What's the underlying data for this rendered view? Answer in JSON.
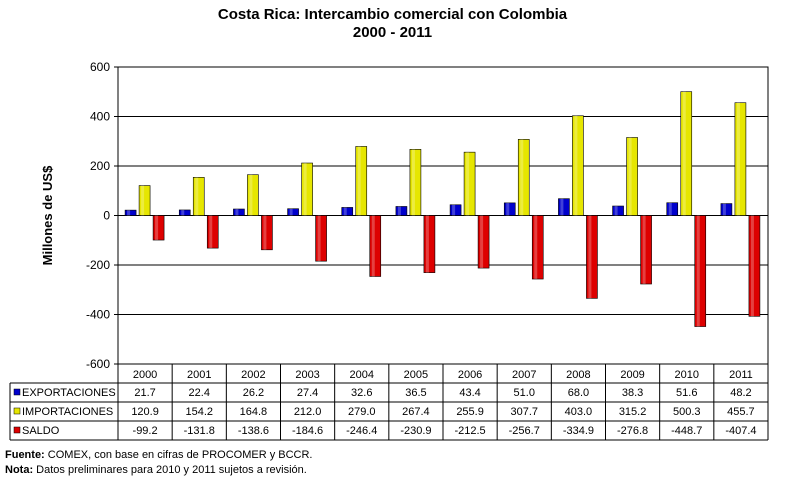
{
  "chart_data": {
    "type": "bar",
    "title": "Costa Rica: Intercambio comercial con Colombia",
    "subtitle": "2000 - 2011",
    "ylabel": "Millones de US$",
    "xlabel": "",
    "ylim": [
      -600,
      600
    ],
    "yticks": [
      600,
      400,
      200,
      0,
      -200,
      -400,
      -600
    ],
    "grid": true,
    "legend": "data-table-left",
    "categories": [
      "2000",
      "2001",
      "2002",
      "2003",
      "2004",
      "2005",
      "2006",
      "2007",
      "2008",
      "2009",
      "2010",
      "2011"
    ],
    "series": [
      {
        "name": "EXPORTACIONES",
        "color": "#0000cc",
        "values": [
          21.7,
          22.4,
          26.2,
          27.4,
          32.6,
          36.5,
          43.4,
          51.0,
          68.0,
          38.3,
          51.6,
          48.2
        ],
        "labels": [
          "21.7",
          "22.4",
          "26.2",
          "27.4",
          "32.6",
          "36.5",
          "43.4",
          "51.0",
          "68.0",
          "38.3",
          "51.6",
          "48.2"
        ]
      },
      {
        "name": "IMPORTACIONES",
        "color": "#e6e600",
        "values": [
          120.9,
          154.2,
          164.8,
          212.0,
          279.0,
          267.4,
          255.9,
          307.7,
          403.0,
          315.2,
          500.3,
          455.7
        ],
        "labels": [
          "120.9",
          "154.2",
          "164.8",
          "212.0",
          "279.0",
          "267.4",
          "255.9",
          "307.7",
          "403.0",
          "315.2",
          "500.3",
          "455.7"
        ]
      },
      {
        "name": "SALDO",
        "color": "#dd0000",
        "values": [
          -99.2,
          -131.8,
          -138.6,
          -184.6,
          -246.4,
          -230.9,
          -212.5,
          -256.7,
          -334.9,
          -276.8,
          -448.7,
          -407.4
        ],
        "labels": [
          "-99.2",
          "-131.8",
          "-138.6",
          "-184.6",
          "-246.4",
          "-230.9",
          "-212.5",
          "-256.7",
          "-334.9",
          "-276.8",
          "-448.7",
          "-407.4"
        ]
      }
    ]
  },
  "footer": {
    "source_label": "Fuente:",
    "source_text": " COMEX,  con base en cifras de PROCOMER  y BCCR.",
    "note_label": "Nota:",
    "note_text": " Datos preliminares para 2010 y 2011 sujetos a revisión."
  }
}
